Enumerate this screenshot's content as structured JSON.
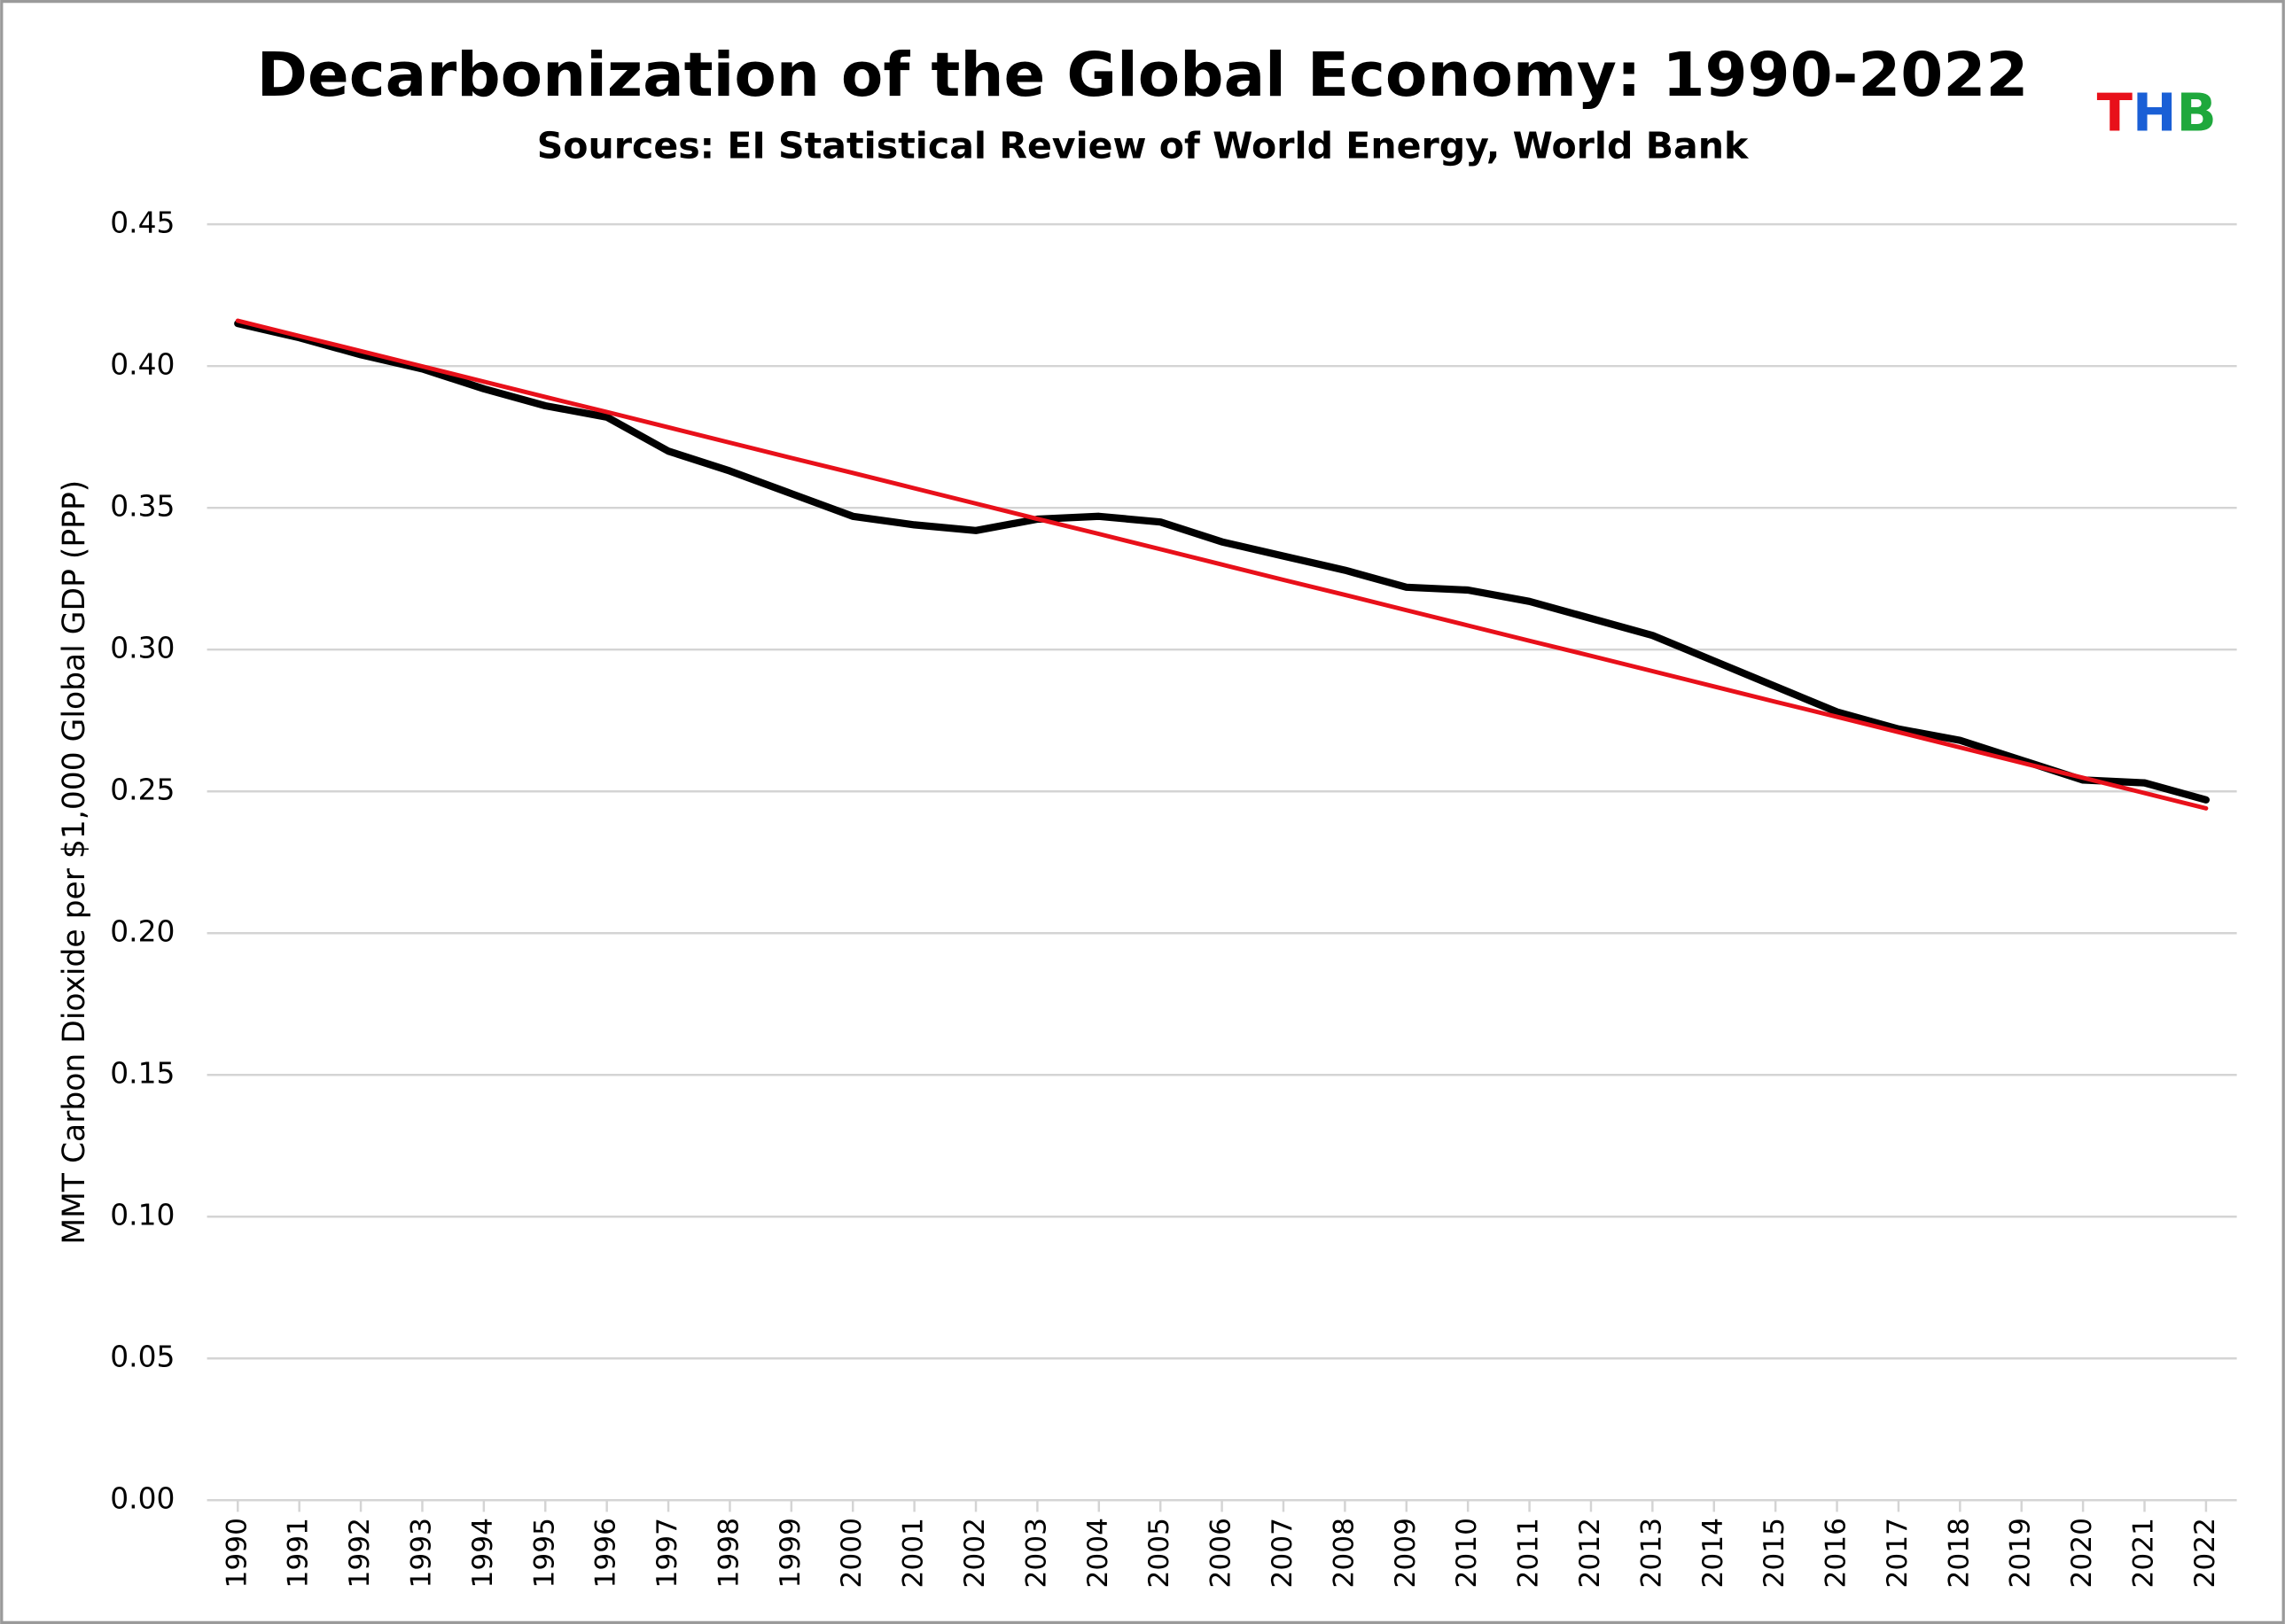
{
  "chart_data": {
    "type": "line",
    "title": "Decarbonization of the Global Economy: 1990-2022",
    "subtitle": "Sources: EI Statistical Review of World Energy, World Bank",
    "y_label": "MMT Carbon Dioxide per $1,000 Global GDP (PPP)",
    "logo": {
      "letters": [
        "T",
        "H",
        "B"
      ],
      "colors": [
        "#e8101a",
        "#1a5fd6",
        "#1ea83c"
      ]
    },
    "categories": [
      "1990",
      "1991",
      "1992",
      "1993",
      "1994",
      "1995",
      "1996",
      "1997",
      "1998",
      "1999",
      "2000",
      "2001",
      "2002",
      "2003",
      "2004",
      "2005",
      "2006",
      "2007",
      "2008",
      "2009",
      "2010",
      "2011",
      "2012",
      "2013",
      "2014",
      "2015",
      "2016",
      "2017",
      "2018",
      "2019",
      "2020",
      "2021",
      "2022"
    ],
    "series": [
      {
        "color": "#000000",
        "width": 5,
        "values": [
          0.415,
          0.41,
          0.404,
          0.399,
          0.392,
          0.386,
          0.382,
          0.37,
          0.363,
          0.355,
          0.347,
          0.344,
          0.342,
          0.346,
          0.347,
          0.345,
          0.338,
          0.333,
          0.328,
          0.322,
          0.321,
          0.317,
          0.311,
          0.305,
          0.296,
          0.287,
          0.278,
          0.272,
          0.268,
          0.261,
          0.254,
          0.253,
          0.247
        ]
      },
      {
        "color": "#e8101a",
        "width": 3,
        "values": [
          0.416,
          0.4106,
          0.4053,
          0.3999,
          0.3945,
          0.3891,
          0.3838,
          0.3784,
          0.373,
          0.3676,
          0.3623,
          0.3569,
          0.3515,
          0.3461,
          0.3408,
          0.3354,
          0.33,
          0.3246,
          0.3193,
          0.3139,
          0.3085,
          0.3031,
          0.2978,
          0.2924,
          0.287,
          0.2816,
          0.2763,
          0.2709,
          0.2655,
          0.2601,
          0.2548,
          0.2494,
          0.244
        ]
      }
    ],
    "ylim": [
      0,
      0.45
    ],
    "yticks": [
      {
        "value": 0,
        "label": "0.00"
      },
      0.05,
      {
        "value": 0.1,
        "label": "0.10"
      },
      0.15,
      {
        "value": 0.2,
        "label": "0.20"
      },
      0.25,
      {
        "value": 0.3,
        "label": "0.30"
      },
      0.35,
      {
        "value": 0.4,
        "label": "0.40"
      },
      0.45
    ],
    "grid": true
  }
}
